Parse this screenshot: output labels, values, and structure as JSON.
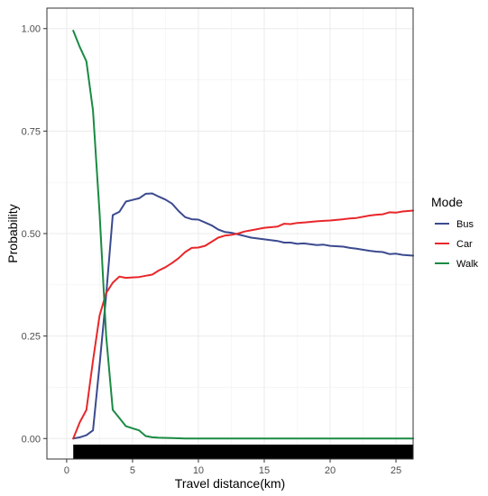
{
  "chart_data": {
    "type": "line",
    "title": "",
    "xlabel": "Travel distance(km)",
    "ylabel": "Probability",
    "xlim": [
      -1.5,
      26.3
    ],
    "ylim": [
      -0.05,
      1.05
    ],
    "x_ticks": [
      0,
      5,
      10,
      15,
      20,
      25
    ],
    "x_tick_labels": [
      "0",
      "5",
      "10",
      "15",
      "20",
      "25"
    ],
    "y_ticks": [
      0,
      0.25,
      0.5,
      0.75,
      1.0
    ],
    "y_tick_labels": [
      "0.00",
      "0.25",
      "0.50",
      "0.75",
      "1.00"
    ],
    "grid": true,
    "legend": {
      "title": "Mode",
      "position": "right"
    },
    "rug": {
      "x_start": 0.5,
      "x_end": 26.3,
      "color": "#000000"
    },
    "series": [
      {
        "name": "Bus",
        "color": "#3b4a8f",
        "points": [
          [
            0.5,
            0.0
          ],
          [
            1.0,
            0.003
          ],
          [
            1.5,
            0.008
          ],
          [
            2.0,
            0.02
          ],
          [
            2.5,
            0.18
          ],
          [
            3.0,
            0.35
          ],
          [
            3.5,
            0.545
          ],
          [
            4.0,
            0.553
          ],
          [
            4.5,
            0.578
          ],
          [
            5.0,
            0.582
          ],
          [
            5.5,
            0.586
          ],
          [
            6.0,
            0.597
          ],
          [
            6.5,
            0.598
          ],
          [
            7.0,
            0.59
          ],
          [
            7.5,
            0.583
          ],
          [
            8.0,
            0.573
          ],
          [
            8.5,
            0.555
          ],
          [
            9.0,
            0.54
          ],
          [
            9.5,
            0.535
          ],
          [
            10.0,
            0.534
          ],
          [
            10.5,
            0.527
          ],
          [
            11.0,
            0.52
          ],
          [
            11.5,
            0.51
          ],
          [
            12.0,
            0.504
          ],
          [
            12.5,
            0.502
          ],
          [
            13.0,
            0.498
          ],
          [
            13.5,
            0.494
          ],
          [
            14.0,
            0.49
          ],
          [
            15.0,
            0.486
          ],
          [
            16.0,
            0.482
          ],
          [
            16.5,
            0.478
          ],
          [
            17.0,
            0.478
          ],
          [
            17.5,
            0.475
          ],
          [
            18.0,
            0.476
          ],
          [
            19.0,
            0.472
          ],
          [
            19.5,
            0.473
          ],
          [
            20.0,
            0.47
          ],
          [
            21.0,
            0.468
          ],
          [
            21.5,
            0.465
          ],
          [
            22.0,
            0.463
          ],
          [
            23.0,
            0.458
          ],
          [
            23.5,
            0.456
          ],
          [
            24.0,
            0.455
          ],
          [
            24.5,
            0.45
          ],
          [
            25.0,
            0.451
          ],
          [
            25.5,
            0.448
          ],
          [
            26.3,
            0.446
          ]
        ]
      },
      {
        "name": "Car",
        "color": "#e8272a",
        "points": [
          [
            0.5,
            0.0
          ],
          [
            1.0,
            0.04
          ],
          [
            1.5,
            0.07
          ],
          [
            2.0,
            0.19
          ],
          [
            2.5,
            0.3
          ],
          [
            3.0,
            0.355
          ],
          [
            3.5,
            0.38
          ],
          [
            4.0,
            0.395
          ],
          [
            4.5,
            0.392
          ],
          [
            5.0,
            0.393
          ],
          [
            5.5,
            0.394
          ],
          [
            6.0,
            0.397
          ],
          [
            6.5,
            0.4
          ],
          [
            7.0,
            0.41
          ],
          [
            7.5,
            0.418
          ],
          [
            8.0,
            0.428
          ],
          [
            8.5,
            0.44
          ],
          [
            9.0,
            0.455
          ],
          [
            9.5,
            0.465
          ],
          [
            10.0,
            0.466
          ],
          [
            10.5,
            0.47
          ],
          [
            11.0,
            0.48
          ],
          [
            11.5,
            0.49
          ],
          [
            12.0,
            0.495
          ],
          [
            12.5,
            0.497
          ],
          [
            13.0,
            0.5
          ],
          [
            13.5,
            0.505
          ],
          [
            14.0,
            0.508
          ],
          [
            15.0,
            0.514
          ],
          [
            16.0,
            0.517
          ],
          [
            16.5,
            0.524
          ],
          [
            17.0,
            0.523
          ],
          [
            17.5,
            0.526
          ],
          [
            18.0,
            0.527
          ],
          [
            19.0,
            0.53
          ],
          [
            19.5,
            0.531
          ],
          [
            20.0,
            0.532
          ],
          [
            21.0,
            0.535
          ],
          [
            21.5,
            0.537
          ],
          [
            22.0,
            0.538
          ],
          [
            23.0,
            0.544
          ],
          [
            23.5,
            0.546
          ],
          [
            24.0,
            0.547
          ],
          [
            24.5,
            0.552
          ],
          [
            25.0,
            0.551
          ],
          [
            25.5,
            0.554
          ],
          [
            26.3,
            0.556
          ]
        ]
      },
      {
        "name": "Walk",
        "color": "#1a8a43",
        "points": [
          [
            0.5,
            0.995
          ],
          [
            1.0,
            0.955
          ],
          [
            1.5,
            0.92
          ],
          [
            2.0,
            0.8
          ],
          [
            2.5,
            0.55
          ],
          [
            3.0,
            0.25
          ],
          [
            3.5,
            0.07
          ],
          [
            4.0,
            0.05
          ],
          [
            4.5,
            0.03
          ],
          [
            5.0,
            0.025
          ],
          [
            5.5,
            0.02
          ],
          [
            6.0,
            0.006
          ],
          [
            6.5,
            0.003
          ],
          [
            7.0,
            0.002
          ],
          [
            8.0,
            0.001
          ],
          [
            9.0,
            0.0
          ],
          [
            12.0,
            0.0
          ],
          [
            15.0,
            0.0
          ],
          [
            20.0,
            0.0
          ],
          [
            26.3,
            0.0
          ]
        ]
      }
    ]
  }
}
